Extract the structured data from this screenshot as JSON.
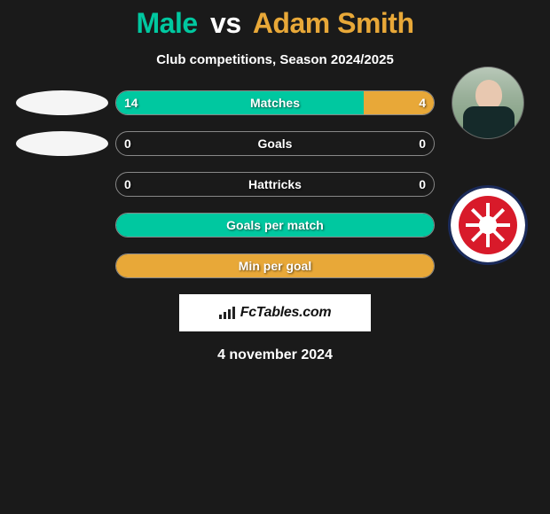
{
  "colors": {
    "left": "#00c8a0",
    "right": "#e8a838",
    "bg": "#1a1a1a",
    "white": "#ffffff",
    "bar_border": "#888888"
  },
  "header": {
    "player1": "Male",
    "vs": "vs",
    "player2": "Adam Smith",
    "subtitle": "Club competitions, Season 2024/2025"
  },
  "stats": [
    {
      "label": "Matches",
      "left_val": "14",
      "right_val": "4",
      "left_pct": 78,
      "right_pct": 22
    },
    {
      "label": "Goals",
      "left_val": "0",
      "right_val": "0",
      "left_pct": 0,
      "right_pct": 0
    },
    {
      "label": "Hattricks",
      "left_val": "0",
      "right_val": "0",
      "left_pct": 0,
      "right_pct": 0
    },
    {
      "label": "Goals per match",
      "left_val": "",
      "right_val": "",
      "left_pct": 100,
      "right_pct": 0
    },
    {
      "label": "Min per goal",
      "left_val": "",
      "right_val": "",
      "left_pct": 0,
      "right_pct": 100
    }
  ],
  "credit": {
    "site": "FcTables.com"
  },
  "date": "4 november 2024"
}
